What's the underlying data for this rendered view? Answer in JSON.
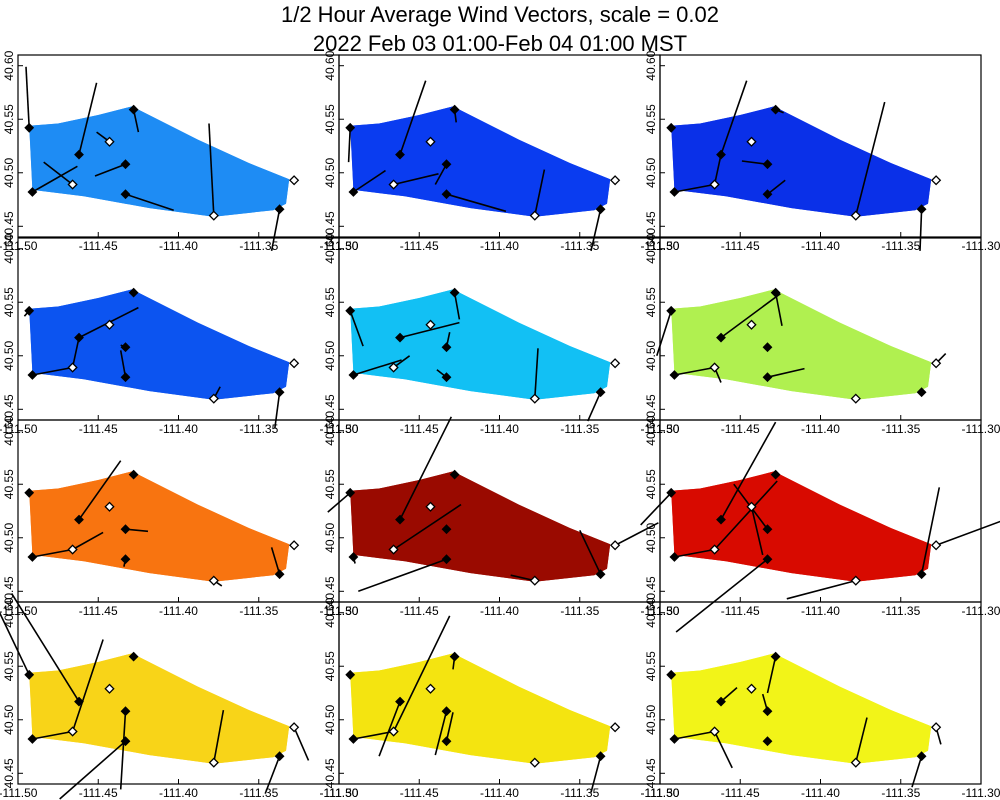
{
  "chart_data": {
    "type": "scatter",
    "title": "1/2 Hour Average Wind Vectors, scale =  0.02",
    "subtitle": "2022 Feb 03 01:00-Feb 04 01:00 MST",
    "xlabel": "",
    "ylabel": "",
    "xlim": [
      -111.5,
      -111.3
    ],
    "ylim": [
      40.44,
      40.61
    ],
    "x_ticks": [
      "-111.50",
      "-111.45",
      "-111.40",
      "-111.35",
      "-111.30"
    ],
    "y_ticks": [
      "40.45",
      "40.50",
      "40.55",
      "40.60"
    ],
    "grid": false,
    "legend": "none",
    "panel_count": 12,
    "panel_fill_colors": [
      "#1e8cf4",
      "#0a3cf0",
      "#0a30e8",
      "#0c54f0",
      "#12c0f4",
      "#b0f050",
      "#f87410",
      "#9a0a00",
      "#d80a00",
      "#f8d418",
      "#f4e410",
      "#f2f418"
    ],
    "stations": [
      {
        "lon": -111.493,
        "lat": 40.542,
        "filled": true
      },
      {
        "lon": -111.462,
        "lat": 40.517,
        "filled": true
      },
      {
        "lon": -111.466,
        "lat": 40.489,
        "filled": false
      },
      {
        "lon": -111.491,
        "lat": 40.482,
        "filled": true
      },
      {
        "lon": -111.428,
        "lat": 40.559,
        "filled": true
      },
      {
        "lon": -111.443,
        "lat": 40.529,
        "filled": false
      },
      {
        "lon": -111.433,
        "lat": 40.508,
        "filled": true
      },
      {
        "lon": -111.433,
        "lat": 40.48,
        "filled": true
      },
      {
        "lon": -111.378,
        "lat": 40.46,
        "filled": false
      },
      {
        "lon": -111.337,
        "lat": 40.466,
        "filled": true
      },
      {
        "lon": -111.328,
        "lat": 40.493,
        "filled": false
      }
    ],
    "wind_segments": [
      [
        [
          -111.495,
          40.599
        ],
        [
          -111.451,
          40.584
        ],
        [
          -111.484,
          40.51
        ],
        [
          -111.463,
          40.506
        ],
        [
          -111.425,
          40.538
        ],
        [
          -111.451,
          40.538
        ],
        [
          -111.452,
          40.497
        ],
        [
          -111.403,
          40.465
        ],
        [
          -111.381,
          40.546
        ],
        [
          -111.342,
          40.427
        ],
        [
          -111.328,
          40.493
        ]
      ],
      [
        [
          -111.494,
          40.51
        ],
        [
          -111.446,
          40.586
        ],
        [
          -111.438,
          40.499
        ],
        [
          -111.471,
          40.502
        ],
        [
          -111.427,
          40.547
        ],
        [
          -111.443,
          40.529
        ],
        [
          -111.44,
          40.489
        ],
        [
          -111.396,
          40.464
        ],
        [
          -111.372,
          40.503
        ],
        [
          -111.343,
          40.427
        ],
        [
          -111.328,
          40.493
        ]
      ],
      [
        [
          -111.493,
          40.542
        ],
        [
          -111.446,
          40.586
        ],
        [
          -111.462,
          40.517
        ],
        [
          -111.466,
          40.489
        ],
        [
          -111.423,
          40.556
        ],
        [
          -111.443,
          40.529
        ],
        [
          -111.449,
          40.511
        ],
        [
          -111.422,
          40.493
        ],
        [
          -111.36,
          40.566
        ],
        [
          -111.338,
          40.427
        ],
        [
          -111.328,
          40.493
        ]
      ],
      [
        [
          -111.496,
          40.537
        ],
        [
          -111.425,
          40.545
        ],
        [
          -111.462,
          40.517
        ],
        [
          -111.466,
          40.489
        ],
        [
          -111.428,
          40.559
        ],
        [
          -111.443,
          40.529
        ],
        [
          -111.436,
          40.51
        ],
        [
          -111.436,
          40.505
        ],
        [
          -111.374,
          40.471
        ],
        [
          -111.34,
          40.432
        ],
        [
          -111.328,
          40.493
        ]
      ],
      [
        [
          -111.485,
          40.509
        ],
        [
          -111.425,
          40.531
        ],
        [
          -111.456,
          40.5
        ],
        [
          -111.461,
          40.496
        ],
        [
          -111.425,
          40.534
        ],
        [
          -111.443,
          40.529
        ],
        [
          -111.431,
          40.522
        ],
        [
          -111.439,
          40.487
        ],
        [
          -111.376,
          40.507
        ],
        [
          -111.345,
          40.439
        ],
        [
          -111.328,
          40.493
        ]
      ],
      [
        [
          -111.502,
          40.5
        ],
        [
          -111.425,
          40.558
        ],
        [
          -111.462,
          40.475
        ],
        [
          -111.466,
          40.489
        ],
        [
          -111.424,
          40.528
        ],
        [
          -111.443,
          40.529
        ],
        [
          -111.433,
          40.508
        ],
        [
          -111.41,
          40.488
        ],
        [
          -111.378,
          40.46
        ],
        [
          -111.337,
          40.466
        ],
        [
          -111.322,
          40.502
        ]
      ],
      [
        [
          -111.493,
          40.542
        ],
        [
          -111.436,
          40.572
        ],
        [
          -111.447,
          40.505
        ],
        [
          -111.466,
          40.489
        ],
        [
          -111.428,
          40.559
        ],
        [
          -111.443,
          40.529
        ],
        [
          -111.419,
          40.506
        ],
        [
          -111.434,
          40.473
        ],
        [
          -111.373,
          40.455
        ],
        [
          -111.342,
          40.491
        ],
        [
          -111.328,
          40.493
        ]
      ],
      [
        [
          -111.507,
          40.524
        ],
        [
          -111.43,
          40.613
        ],
        [
          -111.424,
          40.531
        ],
        [
          -111.49,
          40.476
        ],
        [
          -111.428,
          40.559
        ],
        [
          -111.443,
          40.529
        ],
        [
          -111.433,
          40.508
        ],
        [
          -111.488,
          40.45
        ],
        [
          -111.393,
          40.465
        ],
        [
          -111.35,
          40.507
        ],
        [
          -111.301,
          40.514
        ]
      ],
      [
        [
          -111.512,
          40.512
        ],
        [
          -111.428,
          40.608
        ],
        [
          -111.427,
          40.553
        ],
        [
          -111.466,
          40.489
        ],
        [
          -111.428,
          40.559
        ],
        [
          -111.436,
          40.484
        ],
        [
          -111.454,
          40.55
        ],
        [
          -111.49,
          40.412
        ],
        [
          -111.421,
          40.443
        ],
        [
          -111.326,
          40.547
        ],
        [
          -111.283,
          40.518
        ]
      ],
      [
        [
          -111.513,
          40.605
        ],
        [
          -111.504,
          40.618
        ],
        [
          -111.447,
          40.575
        ],
        [
          -111.466,
          40.489
        ],
        [
          -111.428,
          40.559
        ],
        [
          -111.443,
          40.529
        ],
        [
          -111.436,
          40.435
        ],
        [
          -111.474,
          40.426
        ],
        [
          -111.372,
          40.509
        ],
        [
          -111.346,
          40.431
        ],
        [
          -111.319,
          40.462
        ]
      ],
      [
        [
          -111.493,
          40.542
        ],
        [
          -111.475,
          40.466
        ],
        [
          -111.431,
          40.597
        ],
        [
          -111.466,
          40.489
        ],
        [
          -111.429,
          40.547
        ],
        [
          -111.443,
          40.529
        ],
        [
          -111.44,
          40.467
        ],
        [
          -111.429,
          40.507
        ],
        [
          -111.378,
          40.46
        ],
        [
          -111.343,
          40.432
        ],
        [
          -111.328,
          40.493
        ]
      ],
      [
        [
          -111.493,
          40.542
        ],
        [
          -111.452,
          40.53
        ],
        [
          -111.455,
          40.455
        ],
        [
          -111.466,
          40.489
        ],
        [
          -111.433,
          40.525
        ],
        [
          -111.443,
          40.529
        ],
        [
          -111.436,
          40.524
        ],
        [
          -111.433,
          40.48
        ],
        [
          -111.371,
          40.502
        ],
        [
          -111.343,
          40.437
        ],
        [
          -111.325,
          40.477
        ]
      ]
    ]
  }
}
